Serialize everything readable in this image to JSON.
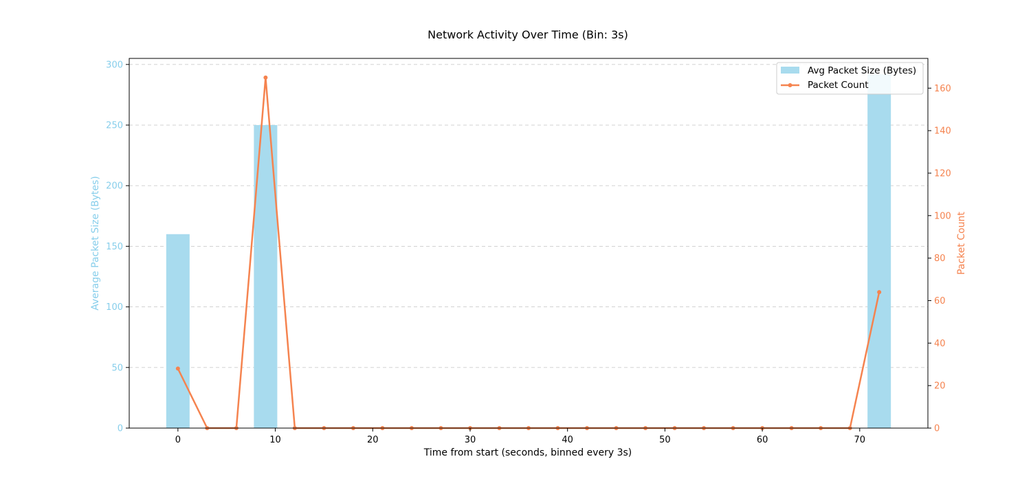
{
  "chart_data": {
    "type": "bar",
    "title": "Network Activity Over Time (Bin: 3s)",
    "xlabel": "Time from start (seconds, binned every 3s)",
    "ylabel_left": "Average Packet Size (Bytes)",
    "ylabel_right": "Packet Count",
    "x_ticks": [
      0,
      10,
      20,
      30,
      40,
      50,
      60,
      70
    ],
    "y_left_ticks": [
      0,
      50,
      100,
      150,
      200,
      250,
      300
    ],
    "y_right_ticks": [
      0,
      20,
      40,
      60,
      80,
      100,
      120,
      140,
      160
    ],
    "xlim": [
      -5,
      77
    ],
    "ylim_left": [
      0,
      305
    ],
    "ylim_right": [
      0,
      174
    ],
    "grid": "horizontal dashed",
    "legend_position": "top-right",
    "colors": {
      "bars": "#a8dbee",
      "line": "#f5834f",
      "left_axis": "#87ceeb",
      "right_axis": "#f5834f"
    },
    "bar_width": 2.4,
    "series": [
      {
        "name": "Avg Packet Size (Bytes)",
        "kind": "bar",
        "axis": "left",
        "x": [
          0,
          9,
          72
        ],
        "values": [
          160,
          250,
          292
        ]
      },
      {
        "name": "Packet Count",
        "kind": "line",
        "axis": "right",
        "x": [
          0,
          3,
          6,
          9,
          12,
          15,
          18,
          21,
          24,
          27,
          30,
          33,
          36,
          39,
          42,
          45,
          48,
          51,
          54,
          57,
          60,
          63,
          66,
          69,
          72
        ],
        "values": [
          28,
          0,
          0,
          165,
          0,
          0,
          0,
          0,
          0,
          0,
          0,
          0,
          0,
          0,
          0,
          0,
          0,
          0,
          0,
          0,
          0,
          0,
          0,
          0,
          64
        ]
      }
    ]
  }
}
